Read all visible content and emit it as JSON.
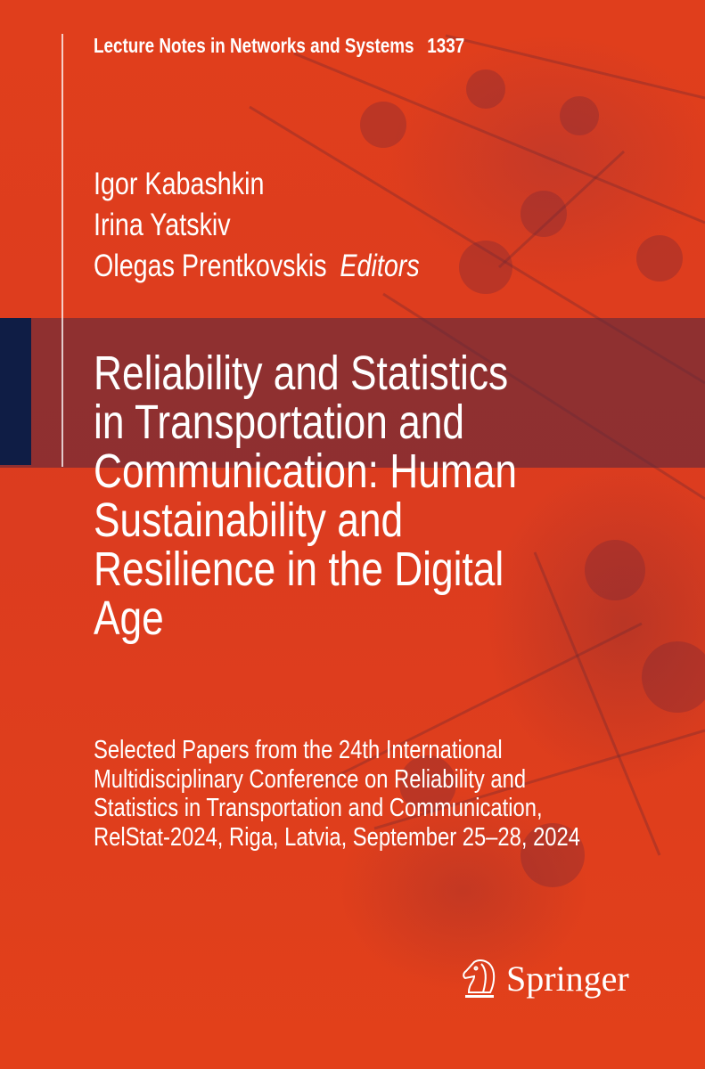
{
  "series": {
    "name": "Lecture Notes in Networks and Systems",
    "volume": "1337"
  },
  "authors": [
    "Igor Kabashkin",
    "Irina Yatskiv",
    "Olegas Prentkovskis"
  ],
  "editors_label": "Editors",
  "title_lines": [
    "Reliability and Statistics",
    "in Transportation and",
    "Communication: Human",
    "Sustainability and",
    "Resilience in the Digital",
    "Age"
  ],
  "subtitle_lines": [
    "Selected Papers from the 24th International",
    "Multidisciplinary Conference on Reliability and",
    "Statistics in Transportation and Communication,",
    "RelStat-2024, Riga, Latvia, September 25–28, 2024"
  ],
  "publisher": {
    "name": "Springer",
    "icon": "springer-horse-icon"
  },
  "colors": {
    "background": "#e03c1c",
    "band": "#5f283c",
    "accent_block": "#0f1d45",
    "text": "#ffffff"
  }
}
